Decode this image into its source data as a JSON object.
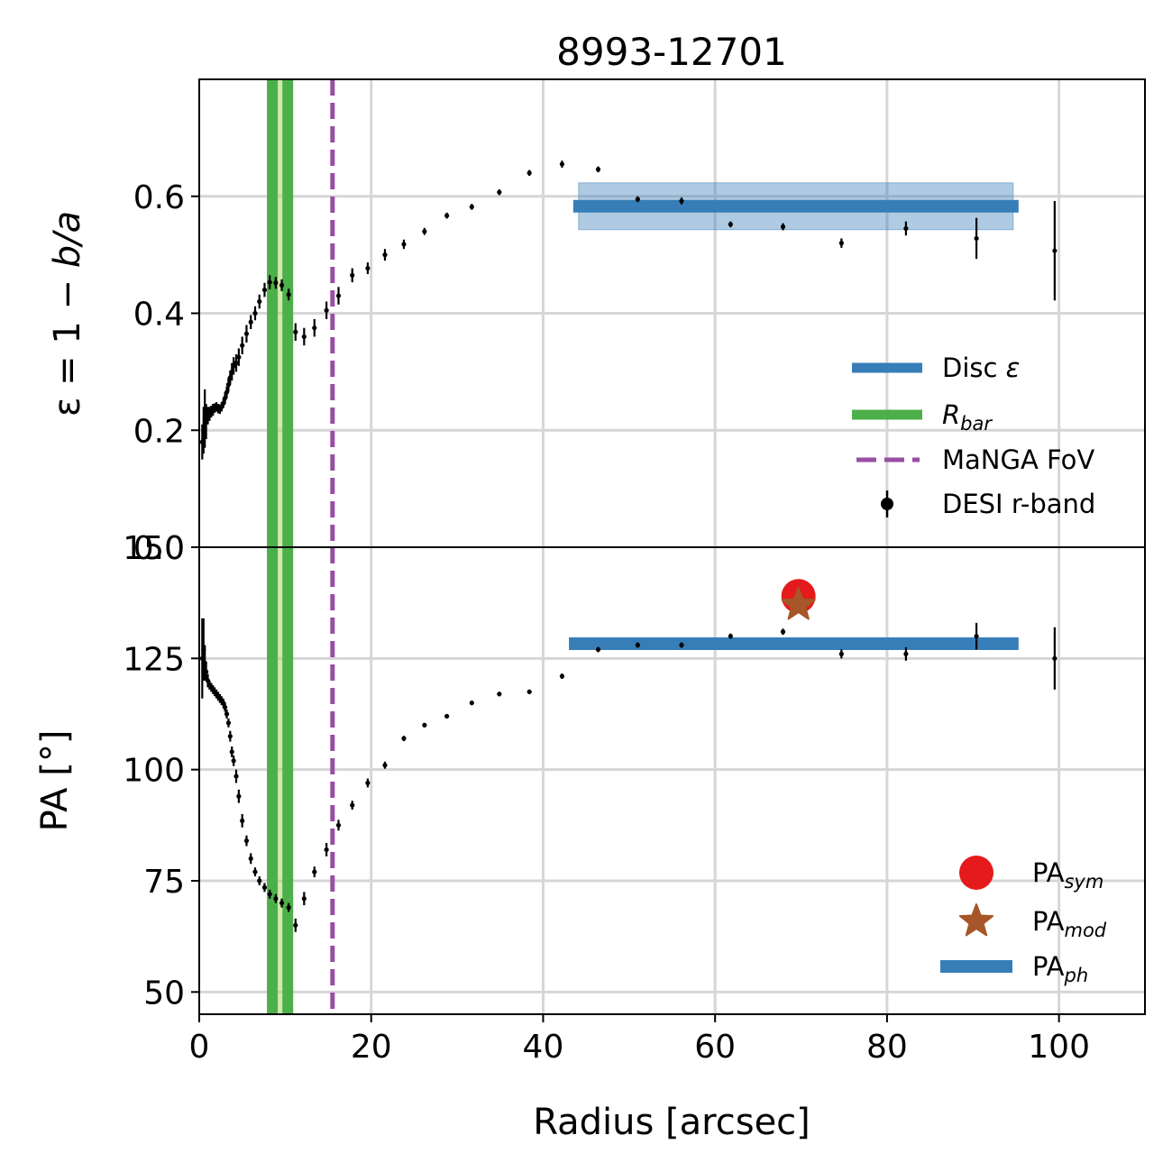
{
  "chart_data": [
    {
      "type": "scatter",
      "panel": "top",
      "title": "8993-12701",
      "ylabel_parts": [
        "ε = 1 − ",
        "b/a"
      ],
      "xlim": [
        0,
        110
      ],
      "ylim": [
        0,
        0.8
      ],
      "yticks": [
        0,
        0.2,
        0.4,
        0.6
      ],
      "ytick_labels": [
        "0.0",
        "0.2",
        "0.4",
        "0.6"
      ],
      "grid": true,
      "legend_position": "lower-right",
      "legend": [
        {
          "kind": "line",
          "color": "#377eb8",
          "label": "Disc ",
          "label_italic": "ε"
        },
        {
          "kind": "line",
          "color": "#4daf4a",
          "label": "",
          "label_italic": "R",
          "label_sub": "bar"
        },
        {
          "kind": "dashed",
          "color": "#984ea3",
          "label": "MaNGA FoV"
        },
        {
          "kind": "point",
          "color": "#000000",
          "label": "DESI r-band"
        }
      ],
      "disc_eps": {
        "value": 0.583,
        "band": [
          0.543,
          0.623
        ],
        "x_range": [
          43.5,
          95.3
        ]
      },
      "r_bar": {
        "lines": [
          8.5,
          10.3
        ],
        "shade": [
          8.5,
          10.3
        ]
      },
      "manga_fov": 15.5,
      "points": [
        {
          "x": 0.35,
          "y": 0.18,
          "err": 0.03
        },
        {
          "x": 0.5,
          "y": 0.2,
          "err": 0.04
        },
        {
          "x": 0.65,
          "y": 0.22,
          "err": 0.05
        },
        {
          "x": 0.8,
          "y": 0.215,
          "err": 0.03
        },
        {
          "x": 1.0,
          "y": 0.225,
          "err": 0.015
        },
        {
          "x": 1.2,
          "y": 0.228,
          "err": 0.012
        },
        {
          "x": 1.4,
          "y": 0.232,
          "err": 0.01
        },
        {
          "x": 1.6,
          "y": 0.235,
          "err": 0.01
        },
        {
          "x": 1.8,
          "y": 0.238,
          "err": 0.008
        },
        {
          "x": 2.0,
          "y": 0.24,
          "err": 0.008
        },
        {
          "x": 2.2,
          "y": 0.237,
          "err": 0.008
        },
        {
          "x": 2.4,
          "y": 0.236,
          "err": 0.008
        },
        {
          "x": 2.6,
          "y": 0.24,
          "err": 0.008
        },
        {
          "x": 2.8,
          "y": 0.246,
          "err": 0.008
        },
        {
          "x": 3.0,
          "y": 0.255,
          "err": 0.01
        },
        {
          "x": 3.2,
          "y": 0.265,
          "err": 0.01
        },
        {
          "x": 3.4,
          "y": 0.278,
          "err": 0.012
        },
        {
          "x": 3.6,
          "y": 0.29,
          "err": 0.012
        },
        {
          "x": 3.8,
          "y": 0.3,
          "err": 0.015
        },
        {
          "x": 4.0,
          "y": 0.31,
          "err": 0.015
        },
        {
          "x": 4.3,
          "y": 0.315,
          "err": 0.015
        },
        {
          "x": 4.6,
          "y": 0.325,
          "err": 0.015
        },
        {
          "x": 5.0,
          "y": 0.345,
          "err": 0.015
        },
        {
          "x": 5.5,
          "y": 0.365,
          "err": 0.015
        },
        {
          "x": 6.0,
          "y": 0.385,
          "err": 0.012
        },
        {
          "x": 6.5,
          "y": 0.4,
          "err": 0.012
        },
        {
          "x": 7.0,
          "y": 0.42,
          "err": 0.012
        },
        {
          "x": 7.6,
          "y": 0.44,
          "err": 0.012
        },
        {
          "x": 8.2,
          "y": 0.453,
          "err": 0.012
        },
        {
          "x": 8.9,
          "y": 0.452,
          "err": 0.01
        },
        {
          "x": 9.6,
          "y": 0.448,
          "err": 0.01
        },
        {
          "x": 10.4,
          "y": 0.432,
          "err": 0.01
        },
        {
          "x": 11.2,
          "y": 0.368,
          "err": 0.015
        },
        {
          "x": 12.2,
          "y": 0.36,
          "err": 0.015
        },
        {
          "x": 13.4,
          "y": 0.375,
          "err": 0.015
        },
        {
          "x": 14.8,
          "y": 0.405,
          "err": 0.015
        },
        {
          "x": 16.2,
          "y": 0.43,
          "err": 0.015
        },
        {
          "x": 17.8,
          "y": 0.465,
          "err": 0.012
        },
        {
          "x": 19.6,
          "y": 0.477,
          "err": 0.01
        },
        {
          "x": 21.6,
          "y": 0.5,
          "err": 0.01
        },
        {
          "x": 23.8,
          "y": 0.518,
          "err": 0.008
        },
        {
          "x": 26.2,
          "y": 0.54,
          "err": 0.006
        },
        {
          "x": 28.8,
          "y": 0.567,
          "err": 0.005
        },
        {
          "x": 31.7,
          "y": 0.582,
          "err": 0.005
        },
        {
          "x": 34.9,
          "y": 0.607,
          "err": 0.005
        },
        {
          "x": 38.4,
          "y": 0.64,
          "err": 0.005
        },
        {
          "x": 42.2,
          "y": 0.655,
          "err": 0.006
        },
        {
          "x": 46.4,
          "y": 0.646,
          "err": 0.005
        },
        {
          "x": 51.0,
          "y": 0.595,
          "err": 0.005
        },
        {
          "x": 56.1,
          "y": 0.592,
          "err": 0.006
        },
        {
          "x": 61.8,
          "y": 0.552,
          "err": 0.005
        },
        {
          "x": 67.9,
          "y": 0.548,
          "err": 0.006
        },
        {
          "x": 74.7,
          "y": 0.52,
          "err": 0.008
        },
        {
          "x": 82.2,
          "y": 0.545,
          "err": 0.012
        },
        {
          "x": 90.4,
          "y": 0.528,
          "err": 0.035
        },
        {
          "x": 99.5,
          "y": 0.507,
          "err": 0.085
        }
      ]
    },
    {
      "type": "scatter",
      "panel": "bottom",
      "ylabel": "PA [°]",
      "xlabel": "Radius [arcsec]",
      "xlim": [
        0,
        110
      ],
      "ylim": [
        45,
        150
      ],
      "xticks": [
        0,
        20,
        40,
        60,
        80,
        100
      ],
      "xtick_labels": [
        "0",
        "20",
        "40",
        "60",
        "80",
        "100"
      ],
      "yticks": [
        50,
        75,
        100,
        125,
        150
      ],
      "ytick_labels": [
        "50",
        "75",
        "100",
        "125",
        "150"
      ],
      "grid": true,
      "legend_position": "lower-right",
      "legend": [
        {
          "kind": "circle",
          "color": "#e41a1c",
          "label": "PA",
          "label_sub": "sym"
        },
        {
          "kind": "star",
          "color": "#a65628",
          "label": "PA",
          "label_sub": "mod"
        },
        {
          "kind": "line",
          "color": "#377eb8",
          "label": "PA",
          "label_sub": "ph"
        }
      ],
      "pa_sym": {
        "x": 69.7,
        "y": 139
      },
      "pa_mod": {
        "x": 69.7,
        "y": 137
      },
      "pa_ph": {
        "value": 128.3,
        "x_range": [
          43.0,
          95.3
        ]
      },
      "r_bar": {
        "lines": [
          8.5,
          10.3
        ],
        "shade": [
          8.5,
          10.3
        ]
      },
      "manga_fov": 15.5,
      "points": [
        {
          "x": 0.35,
          "y": 125,
          "err": 9
        },
        {
          "x": 0.5,
          "y": 127,
          "err": 7
        },
        {
          "x": 0.65,
          "y": 124,
          "err": 4
        },
        {
          "x": 0.8,
          "y": 122,
          "err": 2
        },
        {
          "x": 1.0,
          "y": 120,
          "err": 1.5
        },
        {
          "x": 1.2,
          "y": 119,
          "err": 1
        },
        {
          "x": 1.4,
          "y": 118.5,
          "err": 1
        },
        {
          "x": 1.6,
          "y": 118,
          "err": 1
        },
        {
          "x": 1.8,
          "y": 117.5,
          "err": 1
        },
        {
          "x": 2.0,
          "y": 117,
          "err": 1
        },
        {
          "x": 2.2,
          "y": 116.5,
          "err": 1
        },
        {
          "x": 2.4,
          "y": 116,
          "err": 1
        },
        {
          "x": 2.6,
          "y": 115.5,
          "err": 1
        },
        {
          "x": 2.8,
          "y": 115,
          "err": 1
        },
        {
          "x": 3.0,
          "y": 114,
          "err": 1
        },
        {
          "x": 3.2,
          "y": 112.5,
          "err": 1
        },
        {
          "x": 3.4,
          "y": 110.5,
          "err": 1
        },
        {
          "x": 3.6,
          "y": 107.5,
          "err": 1.2
        },
        {
          "x": 3.8,
          "y": 104,
          "err": 1.2
        },
        {
          "x": 4.0,
          "y": 102,
          "err": 1.2
        },
        {
          "x": 4.3,
          "y": 98.5,
          "err": 1.5
        },
        {
          "x": 4.6,
          "y": 94,
          "err": 1.5
        },
        {
          "x": 5.0,
          "y": 88.5,
          "err": 1.5
        },
        {
          "x": 5.5,
          "y": 84,
          "err": 1.2
        },
        {
          "x": 6.0,
          "y": 80,
          "err": 1.2
        },
        {
          "x": 6.5,
          "y": 77,
          "err": 1
        },
        {
          "x": 7.0,
          "y": 75,
          "err": 1
        },
        {
          "x": 7.6,
          "y": 73.5,
          "err": 1
        },
        {
          "x": 8.2,
          "y": 72,
          "err": 1
        },
        {
          "x": 8.9,
          "y": 71,
          "err": 1
        },
        {
          "x": 9.6,
          "y": 70,
          "err": 1
        },
        {
          "x": 10.4,
          "y": 69,
          "err": 1
        },
        {
          "x": 11.2,
          "y": 65,
          "err": 1.5
        },
        {
          "x": 12.2,
          "y": 71,
          "err": 1.5
        },
        {
          "x": 13.4,
          "y": 77,
          "err": 1.2
        },
        {
          "x": 14.8,
          "y": 82,
          "err": 1.5
        },
        {
          "x": 16.2,
          "y": 87.5,
          "err": 1.2
        },
        {
          "x": 17.8,
          "y": 92,
          "err": 1
        },
        {
          "x": 19.6,
          "y": 97,
          "err": 1
        },
        {
          "x": 21.6,
          "y": 101,
          "err": 0.8
        },
        {
          "x": 23.8,
          "y": 107,
          "err": 0.6
        },
        {
          "x": 26.2,
          "y": 110,
          "err": 0.5
        },
        {
          "x": 28.8,
          "y": 112,
          "err": 0.5
        },
        {
          "x": 31.7,
          "y": 115,
          "err": 0.5
        },
        {
          "x": 34.9,
          "y": 117,
          "err": 0.5
        },
        {
          "x": 38.4,
          "y": 117.5,
          "err": 0.5
        },
        {
          "x": 42.2,
          "y": 121,
          "err": 0.6
        },
        {
          "x": 46.4,
          "y": 127,
          "err": 0.6
        },
        {
          "x": 51.0,
          "y": 128,
          "err": 0.6
        },
        {
          "x": 56.1,
          "y": 128,
          "err": 0.6
        },
        {
          "x": 61.8,
          "y": 130,
          "err": 0.6
        },
        {
          "x": 67.9,
          "y": 131,
          "err": 0.7
        },
        {
          "x": 74.7,
          "y": 126,
          "err": 1
        },
        {
          "x": 82.2,
          "y": 126,
          "err": 1.5
        },
        {
          "x": 90.4,
          "y": 130,
          "err": 3
        },
        {
          "x": 99.5,
          "y": 125,
          "err": 7
        }
      ]
    }
  ]
}
